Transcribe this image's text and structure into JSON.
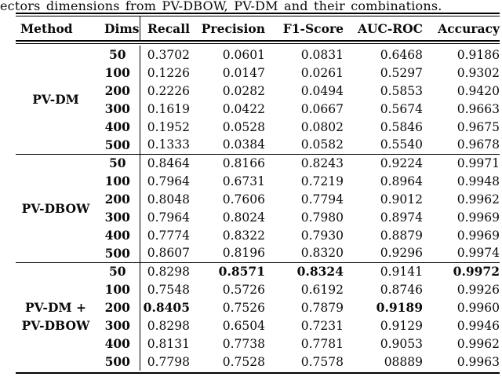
{
  "caption": "ectors dimensions from PV-DBOW, PV-DM and their combinations.",
  "colors": {
    "text": "#000000",
    "background": "#ffffff",
    "rule": "#000000"
  },
  "table": {
    "headers": {
      "method": "Method",
      "dims": "Dims",
      "recall": "Recall",
      "precision": "Precision",
      "f1": "F1-Score",
      "auc": "AUC-ROC",
      "accuracy": "Accuracy"
    },
    "groups": [
      {
        "label_line1": "PV-DM",
        "label_line2": "",
        "rows": [
          {
            "dims": "50",
            "recall": "0.3702",
            "precision": "0.0601",
            "f1": "0.0831",
            "auc": "0.6468",
            "accuracy": "0.9186"
          },
          {
            "dims": "100",
            "recall": "0.1226",
            "precision": "0.0147",
            "f1": "0.0261",
            "auc": "0.5297",
            "accuracy": "0.9302"
          },
          {
            "dims": "200",
            "recall": "0.2226",
            "precision": "0.0282",
            "f1": "0.0494",
            "auc": "0.5853",
            "accuracy": "0.9420"
          },
          {
            "dims": "300",
            "recall": "0.1619",
            "precision": "0.0422",
            "f1": "0.0667",
            "auc": "0.5674",
            "accuracy": "0.9663"
          },
          {
            "dims": "400",
            "recall": "0.1952",
            "precision": "0.0528",
            "f1": "0.0802",
            "auc": "0.5846",
            "accuracy": "0.9675"
          },
          {
            "dims": "500",
            "recall": "0.1333",
            "precision": "0.0384",
            "f1": "0.0582",
            "auc": "0.5540",
            "accuracy": "0.9678"
          }
        ]
      },
      {
        "label_line1": "PV-DBOW",
        "label_line2": "",
        "rows": [
          {
            "dims": "50",
            "recall": "0.8464",
            "precision": "0.8166",
            "f1": "0.8243",
            "auc": "0.9224",
            "accuracy": "0.9971"
          },
          {
            "dims": "100",
            "recall": "0.7964",
            "precision": "0.6731",
            "f1": "0.7219",
            "auc": "0.8964",
            "accuracy": "0.9948"
          },
          {
            "dims": "200",
            "recall": "0.8048",
            "precision": "0.7606",
            "f1": "0.7794",
            "auc": "0.9012",
            "accuracy": "0.9962"
          },
          {
            "dims": "300",
            "recall": "0.7964",
            "precision": "0.8024",
            "f1": "0.7980",
            "auc": "0.8974",
            "accuracy": "0.9969"
          },
          {
            "dims": "400",
            "recall": "0.7774",
            "precision": "0.8322",
            "f1": "0.7930",
            "auc": "0.8879",
            "accuracy": "0.9969"
          },
          {
            "dims": "500",
            "recall": "0.8607",
            "precision": "0.8196",
            "f1": "0.8320",
            "auc": "0.9296",
            "accuracy": "0.9974"
          }
        ]
      },
      {
        "label_line1": "PV-DM +",
        "label_line2": "PV-DBOW",
        "rows": [
          {
            "dims": "50",
            "recall": "0.8298",
            "precision": "0.8571",
            "f1": "0.8324",
            "auc": "0.9141",
            "accuracy": "0.9972"
          },
          {
            "dims": "100",
            "recall": "0.7548",
            "precision": "0.5726",
            "f1": "0.6192",
            "auc": "0.8746",
            "accuracy": "0.9926"
          },
          {
            "dims": "200",
            "recall": "0.8405",
            "precision": "0.7526",
            "f1": "0.7879",
            "auc": "0.9189",
            "accuracy": "0.9960"
          },
          {
            "dims": "300",
            "recall": "0.8298",
            "precision": "0.6504",
            "f1": "0.7231",
            "auc": "0.9129",
            "accuracy": "0.9946"
          },
          {
            "dims": "400",
            "recall": "0.8131",
            "precision": "0.7738",
            "f1": "0.7781",
            "auc": "0.9053",
            "accuracy": "0.9962"
          },
          {
            "dims": "500",
            "recall": "0.7798",
            "precision": "0.7528",
            "f1": "0.7578",
            "auc": "08889",
            "accuracy": "0.9963"
          }
        ]
      }
    ]
  }
}
